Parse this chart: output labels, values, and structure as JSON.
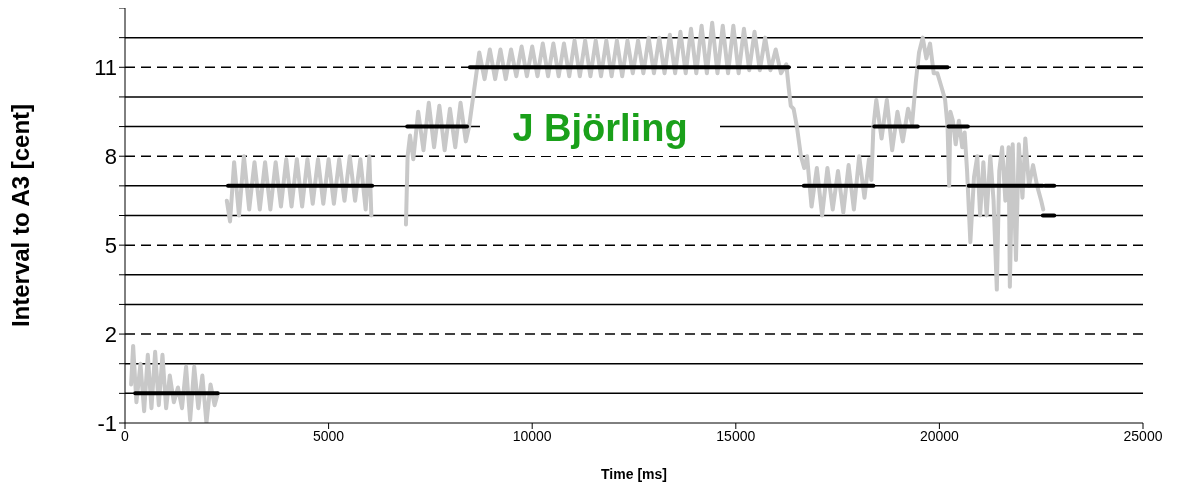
{
  "chart_data": {
    "type": "line",
    "ylabel": "Interval to A3 [cent]",
    "xlabel": "Time [ms]",
    "annotations": [
      "J Björling"
    ],
    "xlim": [
      0,
      25000
    ],
    "xticks": [
      0,
      5000,
      10000,
      15000,
      20000,
      25000
    ],
    "ylim": [
      -1,
      13
    ],
    "yticks": [
      -1,
      {
        "value": 0,
        "label": null
      },
      {
        "value": 1,
        "label": null
      },
      2,
      {
        "value": 3,
        "label": null
      },
      {
        "value": 4,
        "label": null
      },
      5,
      {
        "value": 6,
        "label": null
      },
      {
        "value": 7,
        "label": null
      },
      8,
      {
        "value": 9,
        "label": null
      },
      {
        "value": 10,
        "label": null
      },
      11,
      {
        "value": 12,
        "label": null
      },
      {
        "value": 13,
        "label": null
      }
    ],
    "grid": "y",
    "line_style": "solid",
    "series": [
      {
        "color": "#c8c8c8",
        "x": [
          150,
          200,
          280,
          380,
          470,
          560,
          650,
          740,
          830,
          920,
          1010,
          1100,
          1200,
          1300,
          1400,
          1500,
          1600,
          1700,
          1800,
          1900,
          2000,
          2100,
          2200,
          2280,
          2400,
          2500,
          2580,
          2680,
          2800,
          2920,
          3050,
          3180,
          3310,
          3440,
          3570,
          3700,
          3830,
          3960,
          4090,
          4220,
          4350,
          4480,
          4610,
          4740,
          4870,
          5000,
          5130,
          5260,
          5390,
          5520,
          5650,
          5780,
          5910,
          6000,
          6050,
          6500,
          6900,
          6940,
          7000,
          7080,
          7200,
          7330,
          7460,
          7590,
          7720,
          7850,
          7980,
          8110,
          8240,
          8370,
          8450,
          8550,
          8600,
          8700,
          8830,
          8960,
          9090,
          9220,
          9350,
          9480,
          9610,
          9740,
          9870,
          10000,
          10130,
          10260,
          10390,
          10520,
          10650,
          10780,
          10910,
          11040,
          11170,
          11300,
          11430,
          11560,
          11690,
          11820,
          11950,
          12080,
          12210,
          12340,
          12470,
          12600,
          12730,
          12860,
          12990,
          13120,
          13250,
          13380,
          13510,
          13640,
          13770,
          13900,
          14030,
          14160,
          14290,
          14420,
          14550,
          14680,
          14810,
          14940,
          15070,
          15200,
          15330,
          15460,
          15590,
          15720,
          15850,
          15980,
          16110,
          16240,
          16300,
          16350,
          16420,
          16500,
          16600,
          16680,
          16750,
          16860,
          16990,
          17120,
          17250,
          17380,
          17510,
          17640,
          17770,
          17900,
          18030,
          18160,
          18270,
          18330,
          18380,
          18450,
          18580,
          18710,
          18840,
          18970,
          19100,
          19230,
          19330,
          19420,
          19500,
          19590,
          19680,
          19770,
          19860,
          19950,
          20080,
          20140,
          20200,
          20240,
          20270,
          20330,
          20400,
          20480,
          20560,
          20620,
          20680,
          20760,
          20850,
          20930,
          21000,
          21080,
          21160,
          21250,
          21330,
          21410,
          21470,
          21540,
          21620,
          21700,
          21730,
          21800,
          21880,
          21950,
          22040,
          22110,
          22200,
          22300,
          22400,
          22500,
          22550
        ],
        "values": [
          0.3,
          1.6,
          -0.3,
          1.0,
          -0.6,
          1.3,
          -0.5,
          1.4,
          -0.4,
          1.3,
          -0.5,
          0.6,
          -0.3,
          0.2,
          -0.5,
          0.9,
          -0.9,
          0.9,
          -0.5,
          0.6,
          -1.0,
          0.3,
          -0.4,
          0,
          null,
          6.5,
          5.8,
          7.8,
          6.0,
          8.0,
          6.2,
          7.8,
          6.2,
          7.8,
          6.2,
          7.8,
          6.3,
          7.9,
          6.3,
          7.9,
          6.3,
          7.9,
          6.4,
          7.9,
          6.4,
          7.9,
          6.4,
          7.9,
          6.5,
          8.0,
          6.5,
          7.9,
          6.2,
          8.0,
          6.0,
          null,
          5.7,
          8.0,
          8.7,
          7.9,
          9.5,
          8.2,
          9.8,
          8.3,
          9.7,
          8.2,
          9.6,
          8.3,
          9.8,
          8.5,
          9.0,
          10.0,
          10.5,
          11.5,
          10.6,
          11.6,
          10.6,
          11.6,
          10.6,
          11.6,
          10.7,
          11.7,
          10.7,
          11.7,
          10.7,
          11.8,
          10.7,
          11.8,
          10.7,
          11.8,
          10.7,
          11.9,
          10.7,
          11.9,
          10.7,
          11.9,
          10.7,
          11.9,
          10.7,
          11.9,
          10.7,
          11.9,
          10.8,
          11.9,
          10.8,
          12.0,
          10.8,
          12.0,
          10.8,
          12.1,
          10.8,
          12.2,
          10.8,
          12.3,
          10.8,
          12.4,
          10.8,
          12.5,
          10.8,
          12.4,
          10.8,
          12.4,
          10.8,
          12.3,
          10.9,
          12.2,
          10.9,
          12.0,
          10.9,
          11.6,
          10.8,
          11.1,
          10.3,
          9.7,
          9.6,
          9.0,
          8.0,
          7.6,
          8.0,
          6.3,
          7.6,
          6.0,
          7.6,
          6.2,
          7.5,
          6.1,
          7.7,
          6.2,
          8.0,
          6.6,
          7.9,
          7.2,
          9.0,
          9.9,
          8.6,
          9.9,
          8.2,
          9.5,
          8.5,
          9.6,
          9.1,
          10.5,
          11.5,
          12.0,
          11.3,
          11.8,
          10.8,
          10.8,
          10.2,
          9.9,
          9.0,
          7.0,
          9.5,
          9.2,
          8.4,
          9.2,
          8.3,
          8.8,
          7.5,
          5.1,
          7.3,
          8.0,
          6.0,
          7.8,
          6.0,
          8.0,
          6.5,
          3.5,
          7.5,
          8.3,
          6.5,
          8.3,
          3.6,
          8.4,
          4.5,
          8.4,
          6.6,
          8.6,
          7.0,
          7.7,
          7.0,
          6.5,
          6.2
        ]
      },
      {
        "color": "#000000",
        "x": [
          250,
          2280
        ],
        "values": [
          0,
          0
        ]
      },
      {
        "color": "#000000",
        "x": [
          2530,
          6070
        ],
        "values": [
          7,
          7
        ]
      },
      {
        "color": "#000000",
        "x": [
          6930,
          8400
        ],
        "values": [
          9,
          9
        ]
      },
      {
        "color": "#000000",
        "x": [
          8470,
          16300
        ],
        "values": [
          11,
          11
        ]
      },
      {
        "color": "#000000",
        "x": [
          16670,
          18380
        ],
        "values": [
          7,
          7
        ]
      },
      {
        "color": "#000000",
        "x": [
          18400,
          19470
        ],
        "values": [
          9,
          9
        ]
      },
      {
        "color": "#000000",
        "x": [
          19490,
          20200
        ],
        "values": [
          11,
          11
        ]
      },
      {
        "color": "#000000",
        "x": [
          20220,
          20700
        ],
        "values": [
          9,
          9
        ]
      },
      {
        "color": "#000000",
        "x": [
          20720,
          22540
        ],
        "values": [
          7,
          7
        ]
      },
      {
        "color": "#000000",
        "x": [
          22590,
          22820
        ],
        "values": [
          7,
          7
        ]
      },
      {
        "color": "#000000",
        "x": [
          22540,
          22820
        ],
        "values": [
          6,
          6
        ]
      }
    ]
  }
}
